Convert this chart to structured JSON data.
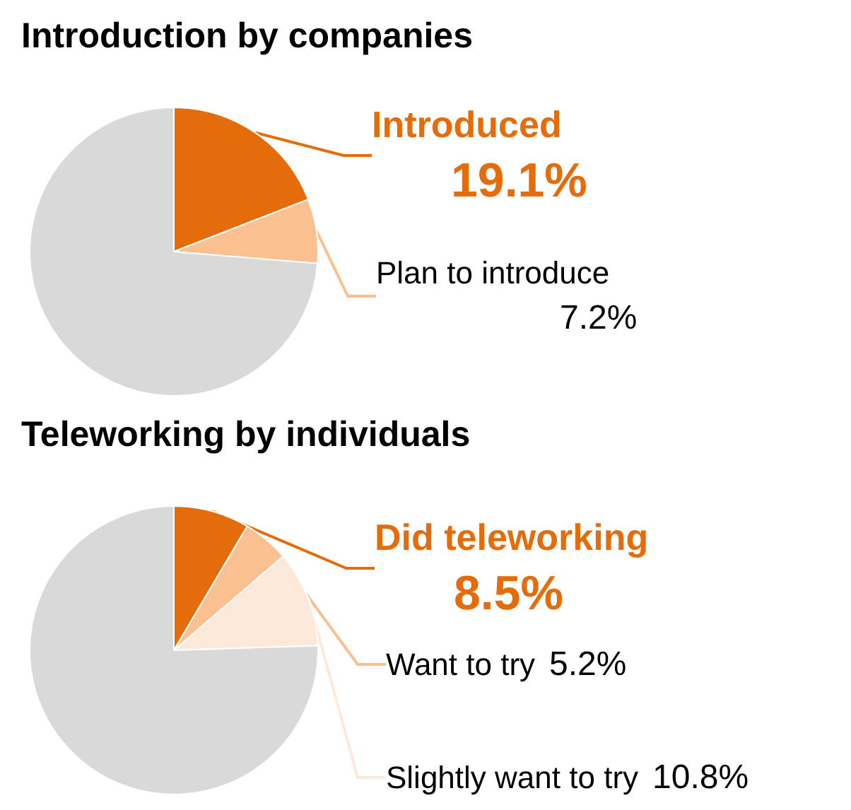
{
  "chart_data": [
    {
      "type": "pie",
      "title": "Introduction by companies",
      "categories": [
        "Introduced",
        "Plan to introduce",
        null
      ],
      "values": [
        19.1,
        7.2,
        73.7
      ],
      "colors": [
        "#e46c0a",
        "#fac090",
        "#d9d9d9"
      ],
      "value_labels": [
        "19.1%",
        "7.2%",
        null
      ],
      "legend": false
    },
    {
      "type": "pie",
      "title": "Teleworking by individuals",
      "categories": [
        "Did teleworking",
        "Want to try",
        "Slightly want to try",
        null
      ],
      "values": [
        8.5,
        5.2,
        10.8,
        75.5
      ],
      "colors": [
        "#e46c0a",
        "#fac090",
        "#fde9d9",
        "#d9d9d9"
      ],
      "value_labels": [
        "8.5%",
        "5.2%",
        "10.8%",
        null
      ],
      "legend": false
    }
  ]
}
